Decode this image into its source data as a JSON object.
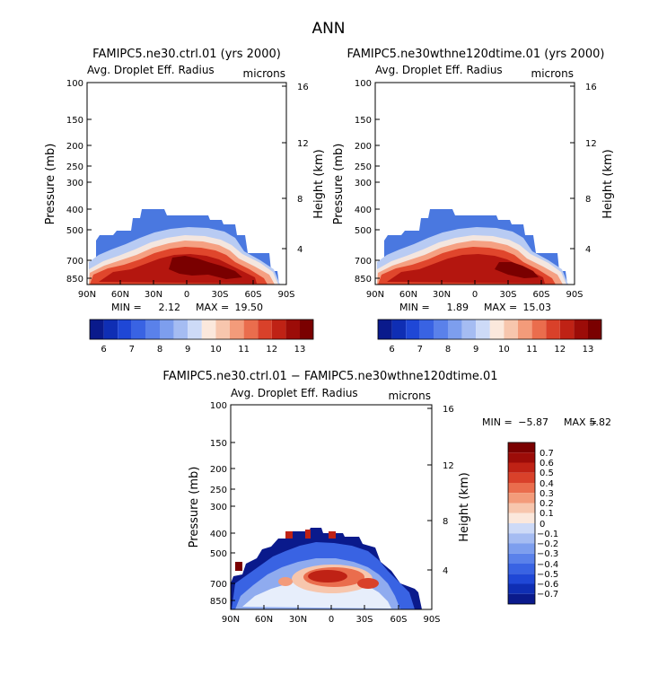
{
  "page": {
    "title": "ANN"
  },
  "colors": {
    "blue_dark": "#0a1a8c",
    "red_dark": "#7a0000"
  },
  "chart_data": [
    {
      "type": "heatmap",
      "id": "ctrl",
      "title": "FAMIPC5.ne30.ctrl.01 (yrs 2000)",
      "subtitle": "Avg. Droplet Eff. Radius",
      "units": "microns",
      "ylabel": "Pressure (mb)",
      "ylabel_right": "Height (km)",
      "x_ticks": [
        "90N",
        "60N",
        "30N",
        "0",
        "30S",
        "60S",
        "90S"
      ],
      "y_ticks": [
        "100",
        "150",
        "200",
        "250",
        "300",
        "400",
        "500",
        "700",
        "850"
      ],
      "y_ticks_right": [
        "16",
        "12",
        "8",
        "4"
      ],
      "stats": {
        "min_label": "MIN =",
        "min": "2.12",
        "max_label": "MAX =",
        "max": "19.50"
      },
      "colorbar": {
        "orientation": "horizontal",
        "labels": [
          "6",
          "7",
          "8",
          "9",
          "10",
          "11",
          "12",
          "13"
        ]
      }
    },
    {
      "type": "heatmap",
      "id": "test",
      "title": "FAMIPC5.ne30wthne120dtime.01 (yrs 2000)",
      "subtitle": "Avg. Droplet Eff. Radius",
      "units": "microns",
      "ylabel": "Pressure (mb)",
      "ylabel_right": "Height (km)",
      "x_ticks": [
        "90N",
        "60N",
        "30N",
        "0",
        "30S",
        "60S",
        "90S"
      ],
      "y_ticks": [
        "100",
        "150",
        "200",
        "250",
        "300",
        "400",
        "500",
        "700",
        "850"
      ],
      "y_ticks_right": [
        "16",
        "12",
        "8",
        "4"
      ],
      "stats": {
        "min_label": "MIN =",
        "min": "1.89",
        "max_label": "MAX =",
        "max": "15.03"
      },
      "colorbar": {
        "orientation": "horizontal",
        "labels": [
          "6",
          "7",
          "8",
          "9",
          "10",
          "11",
          "12",
          "13"
        ]
      }
    },
    {
      "type": "heatmap",
      "id": "diff",
      "title": "FAMIPC5.ne30.ctrl.01 − FAMIPC5.ne30wthne120dtime.01",
      "subtitle": "Avg. Droplet Eff. Radius",
      "units": "microns",
      "ylabel": "Pressure (mb)",
      "ylabel_right": "Height (km)",
      "x_ticks": [
        "90N",
        "60N",
        "30N",
        "0",
        "30S",
        "60S",
        "90S"
      ],
      "y_ticks": [
        "100",
        "150",
        "200",
        "250",
        "300",
        "400",
        "500",
        "700",
        "850"
      ],
      "y_ticks_right": [
        "16",
        "12",
        "8",
        "4"
      ],
      "stats": {
        "min_label": "MIN =",
        "min": "−5.87",
        "max_label": "MAX =",
        "max": "5.82"
      },
      "colorbar": {
        "orientation": "vertical",
        "labels": [
          "0.7",
          "0.6",
          "0.5",
          "0.4",
          "0.3",
          "0.2",
          "0.1",
          "0",
          "−0.1",
          "−0.2",
          "−0.3",
          "−0.4",
          "−0.5",
          "−0.6",
          "−0.7"
        ]
      }
    }
  ]
}
